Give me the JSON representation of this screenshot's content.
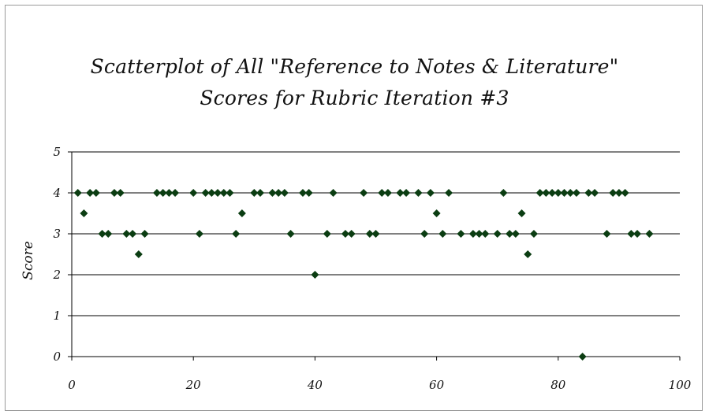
{
  "chart_data": {
    "type": "scatter",
    "title": "Scatterplot of All \"Reference to Notes & Literature\" Scores for Rubric Iteration #3",
    "title_lines": [
      "Scatterplot of All \"Reference to Notes & Literature\"",
      "Scores for Rubric Iteration #3"
    ],
    "xlabel": "",
    "ylabel": "Score",
    "xlim": [
      0,
      100
    ],
    "ylim": [
      0,
      5
    ],
    "xticks": [
      0,
      20,
      40,
      60,
      80,
      100
    ],
    "yticks": [
      0,
      1,
      2,
      3,
      4,
      5
    ],
    "grid": "horizontal",
    "legend": "none",
    "marker": "diamond",
    "marker_color": "#0b3d12",
    "points": [
      [
        1,
        4
      ],
      [
        2,
        3.5
      ],
      [
        3,
        4
      ],
      [
        4,
        4
      ],
      [
        5,
        3
      ],
      [
        6,
        3
      ],
      [
        7,
        4
      ],
      [
        8,
        4
      ],
      [
        9,
        3
      ],
      [
        10,
        3
      ],
      [
        11,
        2.5
      ],
      [
        12,
        3
      ],
      [
        14,
        4
      ],
      [
        15,
        4
      ],
      [
        16,
        4
      ],
      [
        17,
        4
      ],
      [
        20,
        4
      ],
      [
        21,
        3
      ],
      [
        22,
        4
      ],
      [
        23,
        4
      ],
      [
        24,
        4
      ],
      [
        25,
        4
      ],
      [
        26,
        4
      ],
      [
        27,
        3
      ],
      [
        28,
        3.5
      ],
      [
        30,
        4
      ],
      [
        31,
        4
      ],
      [
        33,
        4
      ],
      [
        34,
        4
      ],
      [
        35,
        4
      ],
      [
        36,
        3
      ],
      [
        38,
        4
      ],
      [
        39,
        4
      ],
      [
        40,
        2
      ],
      [
        42,
        3
      ],
      [
        43,
        4
      ],
      [
        45,
        3
      ],
      [
        46,
        3
      ],
      [
        48,
        4
      ],
      [
        49,
        3
      ],
      [
        50,
        3
      ],
      [
        51,
        4
      ],
      [
        52,
        4
      ],
      [
        54,
        4
      ],
      [
        55,
        4
      ],
      [
        57,
        4
      ],
      [
        58,
        3
      ],
      [
        59,
        4
      ],
      [
        60,
        3.5
      ],
      [
        61,
        3
      ],
      [
        62,
        4
      ],
      [
        64,
        3
      ],
      [
        66,
        3
      ],
      [
        67,
        3
      ],
      [
        68,
        3
      ],
      [
        70,
        3
      ],
      [
        71,
        4
      ],
      [
        72,
        3
      ],
      [
        73,
        3
      ],
      [
        74,
        3.5
      ],
      [
        75,
        2.5
      ],
      [
        76,
        3
      ],
      [
        77,
        4
      ],
      [
        78,
        4
      ],
      [
        79,
        4
      ],
      [
        80,
        4
      ],
      [
        81,
        4
      ],
      [
        82,
        4
      ],
      [
        83,
        4
      ],
      [
        84,
        0
      ],
      [
        85,
        4
      ],
      [
        86,
        4
      ],
      [
        88,
        3
      ],
      [
        89,
        4
      ],
      [
        90,
        4
      ],
      [
        91,
        4
      ],
      [
        92,
        3
      ],
      [
        93,
        3
      ],
      [
        95,
        3
      ]
    ]
  }
}
